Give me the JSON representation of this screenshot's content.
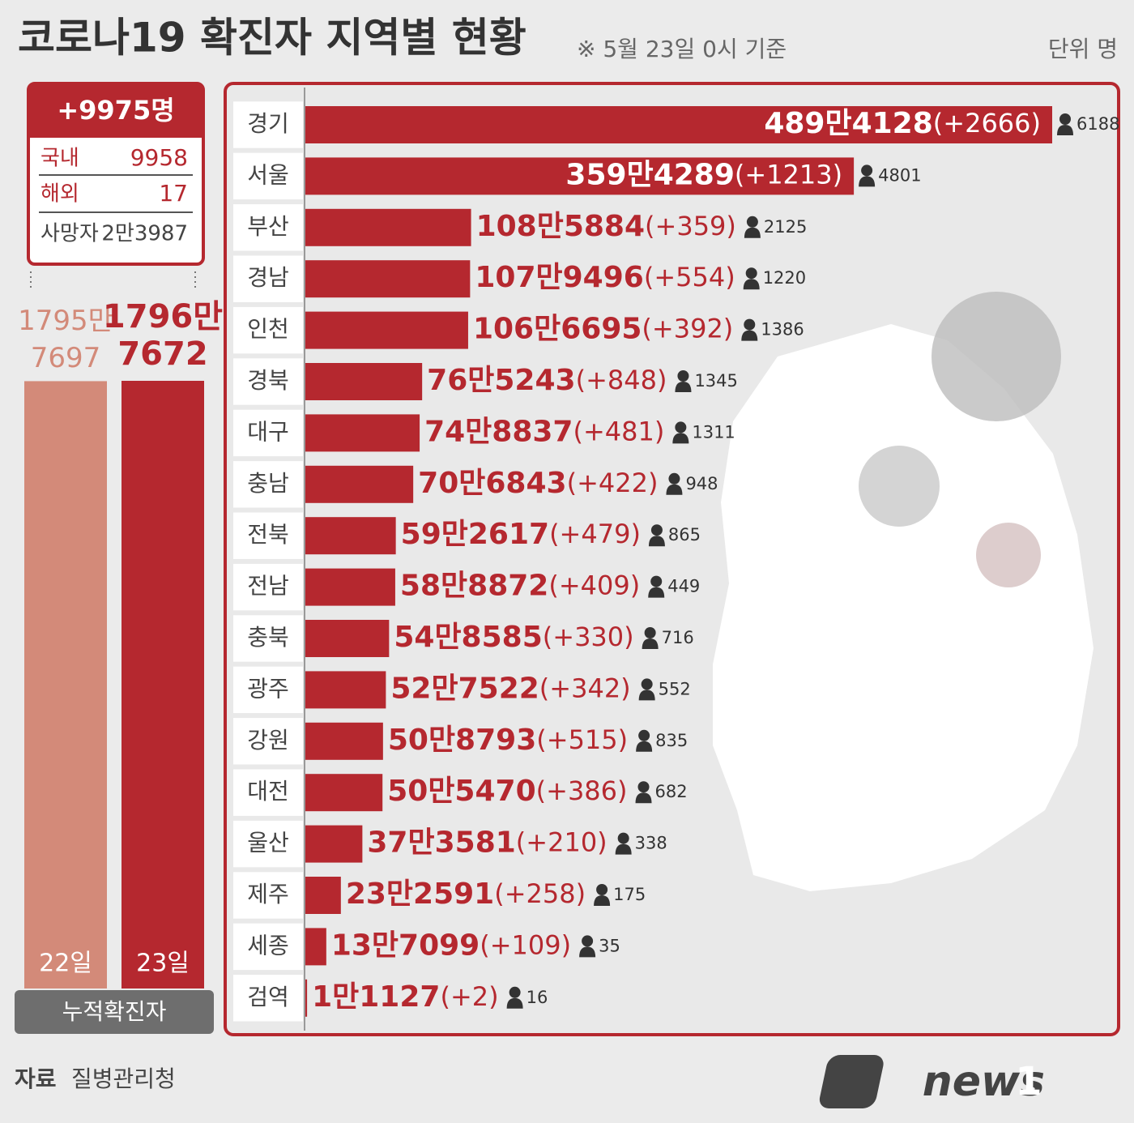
{
  "header": {
    "title": "코로나19 확진자 지역별 현황",
    "subtitle": "※ 5월 23일 0시 기준",
    "unit": "단위 명"
  },
  "summary": {
    "total": "+9975명",
    "rows": [
      [
        "국내",
        9958
      ],
      [
        "해외",
        17
      ]
    ],
    "deaths_label": "사망자",
    "deaths": "2만3987"
  },
  "chart_data": [
    {
      "type": "hbar",
      "color": "#b5282f",
      "categories": [
        "경기",
        "서울",
        "부산",
        "경남",
        "인천",
        "경북",
        "대구",
        "충남",
        "전북",
        "전남",
        "충북",
        "광주",
        "강원",
        "대전",
        "울산",
        "제주",
        "세종",
        "검역"
      ],
      "values": [
        4894128,
        3594289,
        1085884,
        1079496,
        1066695,
        765243,
        748837,
        706843,
        592617,
        588872,
        548585,
        527522,
        508793,
        505470,
        373581,
        232591,
        137099,
        11127
      ],
      "value_labels": [
        "489만4128",
        "359만4289",
        "108만5884",
        "107만9496",
        "106만6695",
        "76만5243",
        "74만8837",
        "70만6843",
        "59만2617",
        "58만8872",
        "54만8585",
        "52만7522",
        "50만8793",
        "50만5470",
        "37만3581",
        "23만2591",
        "13만7099",
        "1만1127"
      ],
      "new_cases": [
        "(+2666)",
        "(+1213)",
        "(+359)",
        "(+554)",
        "(+392)",
        "(+848)",
        "(+481)",
        "(+422)",
        "(+479)",
        "(+409)",
        "(+330)",
        "(+342)",
        "(+515)",
        "(+386)",
        "(+210)",
        "(+258)",
        "(+109)",
        "(+2)"
      ],
      "deaths": [
        6188,
        4801,
        2125,
        1220,
        1386,
        1345,
        1311,
        948,
        865,
        449,
        716,
        552,
        835,
        682,
        338,
        175,
        35,
        16
      ]
    },
    {
      "type": "vbar",
      "x_label": "누적확진자",
      "categories": [
        "22일",
        "23일"
      ],
      "values": [
        17957697,
        17967672
      ],
      "value_labels": [
        [
          "1795만",
          "7697"
        ],
        [
          "1796만",
          "7672"
        ]
      ],
      "colors": [
        "#d38a79",
        "#b5282f"
      ]
    }
  ],
  "source_label": "자료",
  "source": "질병관리청",
  "logo": "news",
  "logo_mark": "1"
}
